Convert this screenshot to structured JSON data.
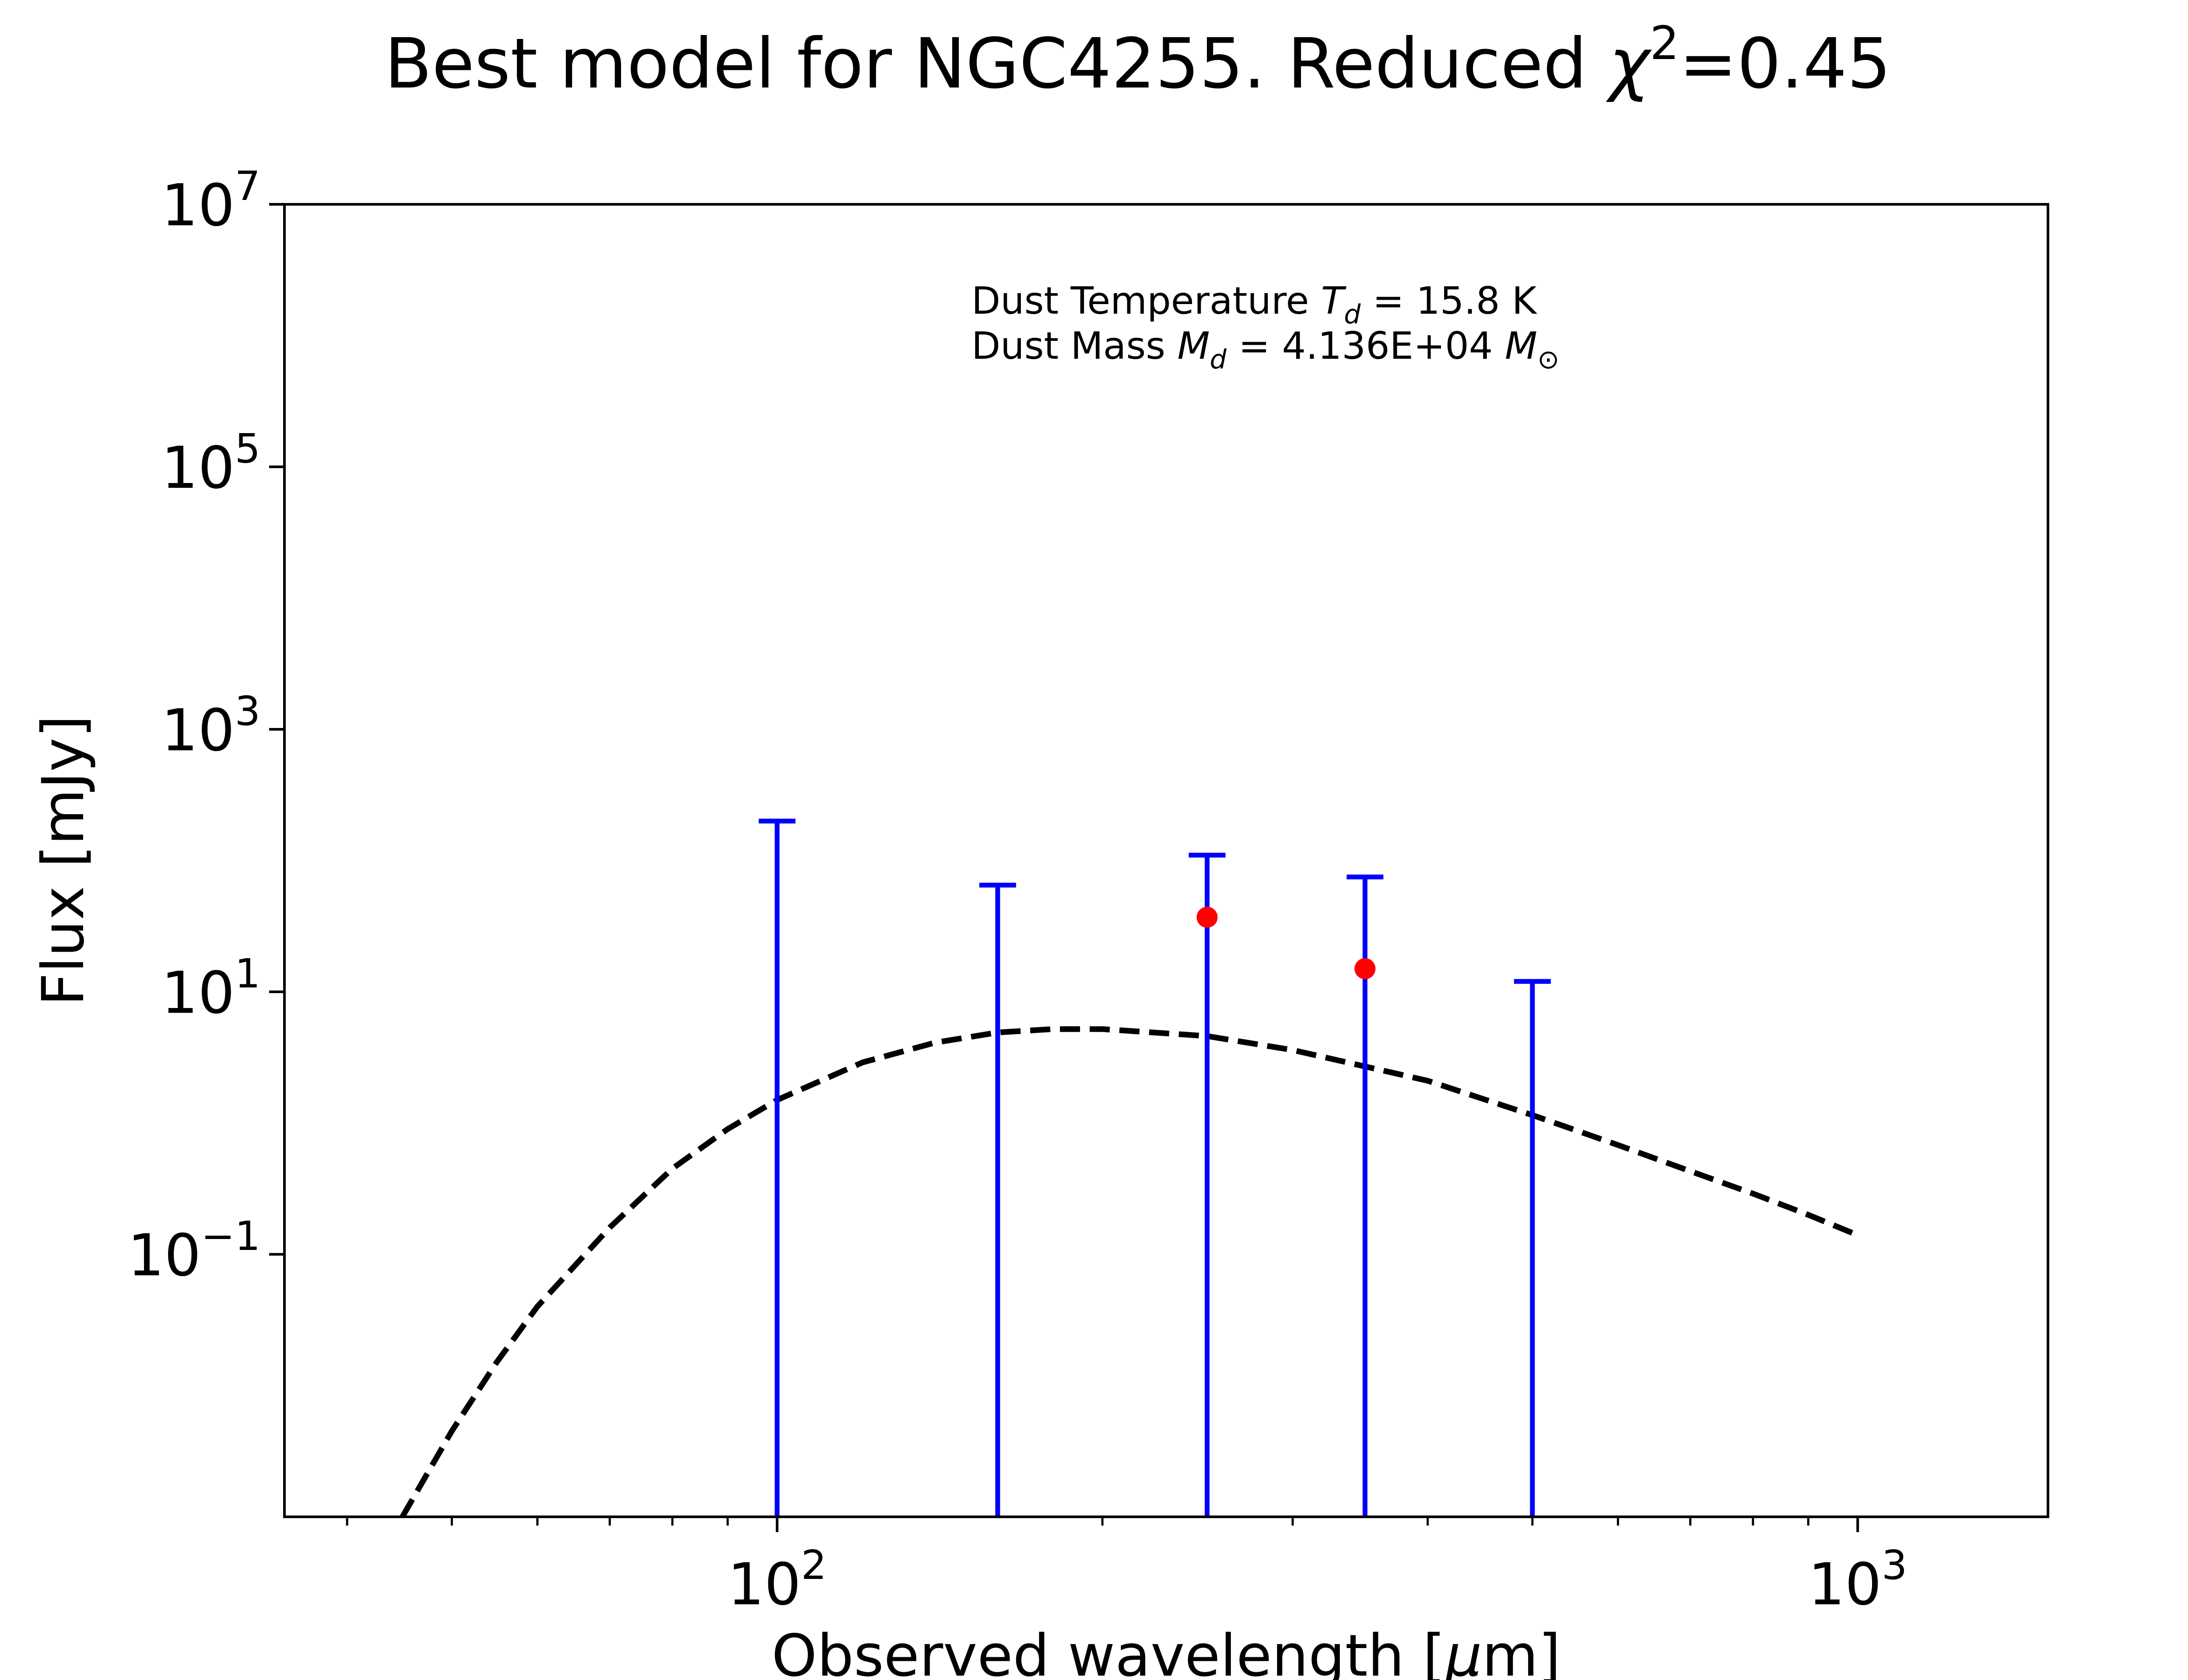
{
  "chart_data": {
    "type": "scatter",
    "title": "Best model for NGC4255. Reduced χ²=0.45",
    "title_parts": {
      "main": "Best model for NGC4255. Reduced ",
      "chi": "χ",
      "sup": "2",
      "tail": "=0.45"
    },
    "xlabel_parts": {
      "main": "Observed wavelength [",
      "mu": "μ",
      "unit": "m]"
    },
    "ylabel": "Flux [mJy]",
    "x_scale": "log",
    "y_scale": "log",
    "xlim": [
      35,
      1500
    ],
    "ylim": [
      0.001,
      10000000
    ],
    "x_ticks": [
      {
        "value": 100,
        "base": "10",
        "exp": "2"
      },
      {
        "value": 1000,
        "base": "10",
        "exp": "3"
      }
    ],
    "x_minor_ticks": [
      40,
      50,
      60,
      70,
      80,
      90,
      200,
      300,
      400,
      500,
      600,
      700,
      800,
      900
    ],
    "y_ticks": [
      {
        "value": 0.1,
        "base": "10",
        "exp": "−1"
      },
      {
        "value": 10,
        "base": "10",
        "exp": "1"
      },
      {
        "value": 1000,
        "base": "10",
        "exp": "3"
      },
      {
        "value": 100000,
        "base": "10",
        "exp": "5"
      },
      {
        "value": 10000000,
        "base": "10",
        "exp": "7"
      }
    ],
    "annotation": {
      "line1": {
        "pre": "Dust Temperature ",
        "sym": "T",
        "sub": "d",
        "post": " = 15.8 K"
      },
      "line2": {
        "pre": "Dust Mass ",
        "sym": "M",
        "sub": "d",
        "mid": " = 4.136E+04 ",
        "sym2": "M",
        "sub2": "⊙"
      }
    },
    "model_curve": {
      "name": "model",
      "color": "#000000",
      "style": "dashed",
      "x": [
        45,
        50,
        55,
        60,
        70,
        80,
        90,
        100,
        120,
        140,
        160,
        180,
        200,
        250,
        300,
        350,
        400,
        500,
        600,
        700,
        800,
        900,
        1000
      ],
      "y": [
        0.001,
        0.0045,
        0.015,
        0.04,
        0.16,
        0.45,
        0.9,
        1.5,
        2.9,
        4.1,
        4.9,
        5.2,
        5.2,
        4.6,
        3.6,
        2.7,
        2.1,
        1.15,
        0.68,
        0.43,
        0.29,
        0.2,
        0.14
      ]
    },
    "upper_limits": {
      "color": "#0000ff",
      "points": [
        {
          "x": 100,
          "y": 200
        },
        {
          "x": 160,
          "y": 65
        },
        {
          "x": 250,
          "y": 110
        },
        {
          "x": 350,
          "y": 75
        },
        {
          "x": 500,
          "y": 12
        }
      ]
    },
    "detections": {
      "color": "#ff0000",
      "points": [
        {
          "x": 250,
          "y": 37
        },
        {
          "x": 350,
          "y": 15
        }
      ]
    }
  }
}
